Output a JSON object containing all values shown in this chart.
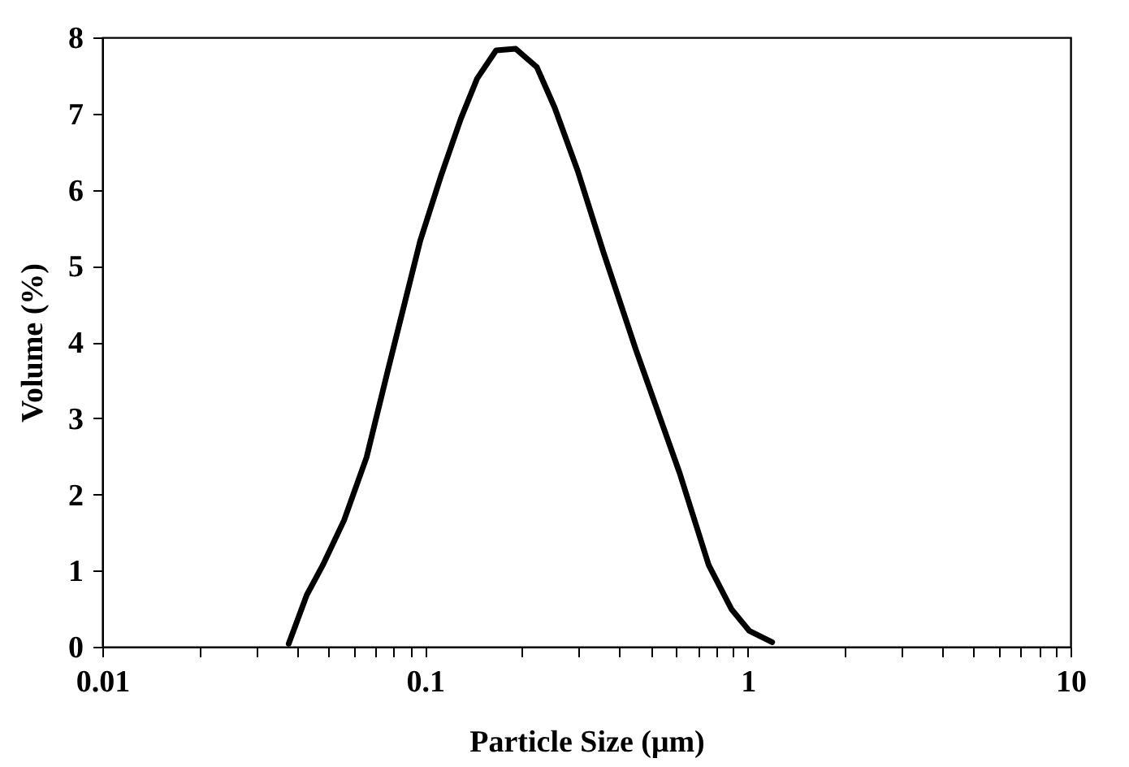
{
  "chart_data": {
    "type": "line",
    "xlabel": "Particle Size (μm)",
    "ylabel": "Volume (%)",
    "log": "x",
    "xlim": [
      0.01,
      10
    ],
    "ylim": [
      0,
      8
    ],
    "xticks": [
      "0.01",
      {
        "value": 0.02,
        "label": null
      },
      {
        "value": 0.03,
        "label": null
      },
      {
        "value": 0.04,
        "label": null
      },
      {
        "value": 0.05,
        "label": null
      },
      {
        "value": 0.06,
        "label": null
      },
      {
        "value": 0.07,
        "label": null
      },
      {
        "value": 0.08,
        "label": null
      },
      {
        "value": 0.09,
        "label": null
      },
      {
        "value": 0.1,
        "label": "0.1"
      },
      {
        "value": 0.2,
        "label": null
      },
      {
        "value": 0.3,
        "label": null
      },
      {
        "value": 0.4,
        "label": null
      },
      {
        "value": 0.5,
        "label": null
      },
      {
        "value": 0.6,
        "label": null
      },
      {
        "value": 0.7,
        "label": null
      },
      {
        "value": 0.8,
        "label": null
      },
      {
        "value": 0.9,
        "label": null
      },
      1,
      {
        "value": 2,
        "label": null
      },
      {
        "value": 3,
        "label": null
      },
      {
        "value": 4,
        "label": null
      },
      {
        "value": 5,
        "label": null
      },
      {
        "value": 6,
        "label": null
      },
      {
        "value": 7,
        "label": null
      },
      {
        "value": 8,
        "label": null
      },
      {
        "value": 9,
        "label": null
      },
      10
    ],
    "yticks": [
      0,
      1,
      2,
      3,
      4,
      5,
      6,
      7,
      8
    ],
    "grid": false,
    "line_style": "solid",
    "marker": "none",
    "series": [
      {
        "color": "#000000",
        "x": [
          0.0378,
          0.043,
          0.0482,
          0.0561,
          0.0659,
          0.0766,
          0.0966,
          0.112,
          0.129,
          0.145,
          0.166,
          0.191,
          0.222,
          0.252,
          0.297,
          0.357,
          0.45,
          0.488,
          0.615,
          0.757,
          0.891,
          1.01,
          1.19
        ],
        "values": [
          0.04,
          0.68,
          1.07,
          1.66,
          2.49,
          3.62,
          5.33,
          6.18,
          6.93,
          7.46,
          7.83,
          7.85,
          7.61,
          7.08,
          6.25,
          5.18,
          3.9,
          3.48,
          2.28,
          1.07,
          0.49,
          0.21,
          0.06
        ]
      }
    ]
  }
}
